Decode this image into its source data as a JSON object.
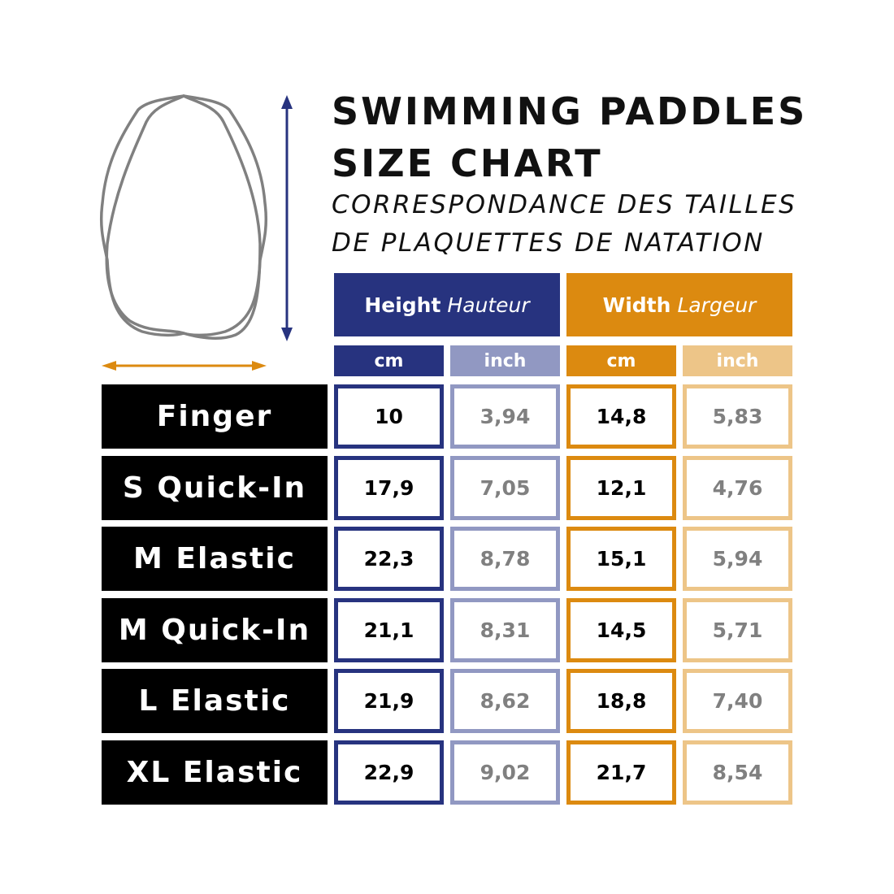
{
  "title": {
    "line1": "SWIMMING PADDLES",
    "line2": "SIZE CHART"
  },
  "subtitle": {
    "line1": "CORRESPONDANCE DES TAILLES",
    "line2": "DE PLAQUETTES DE NATATION"
  },
  "colors": {
    "height": "#27337f",
    "height_light": "#9198c2",
    "width": "#dc8a10",
    "width_light": "#edc588",
    "paddle_outline": "#808080"
  },
  "icons": {
    "paddle": "paddle-outline-icon",
    "height_arrow": "vertical-double-arrow-icon",
    "width_arrow": "horizontal-double-arrow-icon"
  },
  "headers": {
    "height": {
      "en": "Height",
      "fr": "Hauteur"
    },
    "width": {
      "en": "Width",
      "fr": "Largeur"
    },
    "units": [
      "cm",
      "inch",
      "cm",
      "inch"
    ]
  },
  "rows": [
    {
      "label": "Finger",
      "values": [
        "10",
        "3,94",
        "14,8",
        "5,83"
      ]
    },
    {
      "label": "S Quick-In",
      "values": [
        "17,9",
        "7,05",
        "12,1",
        "4,76"
      ]
    },
    {
      "label": "M Elastic",
      "values": [
        "22,3",
        "8,78",
        "15,1",
        "5,94"
      ]
    },
    {
      "label": "M Quick-In",
      "values": [
        "21,1",
        "8,31",
        "14,5",
        "5,71"
      ]
    },
    {
      "label": "L Elastic",
      "values": [
        "21,9",
        "8,62",
        "18,8",
        "7,40"
      ]
    },
    {
      "label": "XL Elastic",
      "values": [
        "22,9",
        "9,02",
        "21,7",
        "8,54"
      ]
    }
  ]
}
